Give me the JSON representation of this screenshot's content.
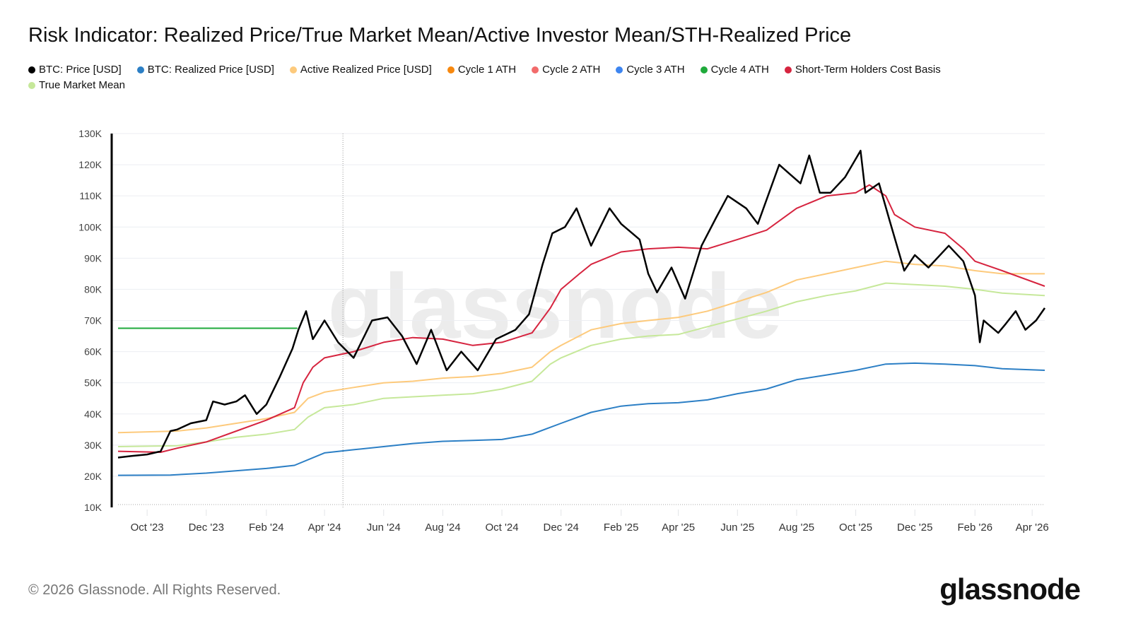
{
  "title": "Risk Indicator: Realized Price/True Market Mean/Active Investor Mean/STH-Realized Price",
  "footer": {
    "copyright": "© 2026 Glassnode. All Rights Reserved.",
    "logo": "glassnode"
  },
  "watermark": "glassnode",
  "legend": [
    {
      "label": "BTC: Price [USD]",
      "color": "#000000"
    },
    {
      "label": "BTC: Realized Price [USD]",
      "color": "#2c7fc5"
    },
    {
      "label": "Active Realized Price [USD]",
      "color": "#fdca7c"
    },
    {
      "label": "Cycle 1 ATH",
      "color": "#f7880f"
    },
    {
      "label": "Cycle 2 ATH",
      "color": "#f26b6b"
    },
    {
      "label": "Cycle 3 ATH",
      "color": "#3d85f0"
    },
    {
      "label": "Cycle 4 ATH",
      "color": "#1faa3b"
    },
    {
      "label": "Short-Term Holders Cost Basis",
      "color": "#d6243f"
    },
    {
      "label": "True Market Mean",
      "color": "#c6e89a"
    }
  ],
  "chart_data": {
    "type": "line",
    "title": "Risk Indicator: Realized Price/True Market Mean/Active Investor Mean/STH-Realized Price",
    "xlim": [
      "2023-09-01",
      "2026-04-14"
    ],
    "ylim": [
      10000,
      130000
    ],
    "y_ticks": [
      "10K",
      "20K",
      "30K",
      "40K",
      "50K",
      "60K",
      "70K",
      "80K",
      "90K",
      "100K",
      "110K",
      "120K",
      "130K"
    ],
    "x_ticks": [
      {
        "date": "2023-10-01",
        "label": "Oct '23"
      },
      {
        "date": "2023-12-01",
        "label": "Dec '23"
      },
      {
        "date": "2024-02-01",
        "label": "Feb '24"
      },
      {
        "date": "2024-04-01",
        "label": "Apr '24"
      },
      {
        "date": "2024-06-01",
        "label": "Jun '24"
      },
      {
        "date": "2024-08-01",
        "label": "Aug '24"
      },
      {
        "date": "2024-10-01",
        "label": "Oct '24"
      },
      {
        "date": "2024-12-01",
        "label": "Dec '24"
      },
      {
        "date": "2025-02-01",
        "label": "Feb '25"
      },
      {
        "date": "2025-04-01",
        "label": "Apr '25"
      },
      {
        "date": "2025-06-01",
        "label": "Jun '25"
      },
      {
        "date": "2025-08-01",
        "label": "Aug '25"
      },
      {
        "date": "2025-10-01",
        "label": "Oct '25"
      },
      {
        "date": "2025-12-01",
        "label": "Dec '25"
      },
      {
        "date": "2026-02-01",
        "label": "Feb '26"
      },
      {
        "date": "2026-04-01",
        "label": "Apr '26"
      }
    ],
    "grid": true,
    "legend_position": "top-left",
    "vertical_marker_date": "2024-04-20",
    "series": [
      {
        "name": "BTC: Price [USD]",
        "color": "#000000",
        "points": [
          [
            "2023-09-01",
            26000
          ],
          [
            "2023-09-15",
            26500
          ],
          [
            "2023-10-01",
            27000
          ],
          [
            "2023-10-15",
            28000
          ],
          [
            "2023-10-25",
            34500
          ],
          [
            "2023-11-01",
            35000
          ],
          [
            "2023-11-15",
            37000
          ],
          [
            "2023-12-01",
            38000
          ],
          [
            "2023-12-08",
            44000
          ],
          [
            "2023-12-20",
            43000
          ],
          [
            "2024-01-01",
            44000
          ],
          [
            "2024-01-10",
            46000
          ],
          [
            "2024-01-22",
            40000
          ],
          [
            "2024-02-01",
            43000
          ],
          [
            "2024-02-15",
            52000
          ],
          [
            "2024-02-28",
            61000
          ],
          [
            "2024-03-05",
            67000
          ],
          [
            "2024-03-13",
            73000
          ],
          [
            "2024-03-20",
            64000
          ],
          [
            "2024-04-01",
            70000
          ],
          [
            "2024-04-15",
            63000
          ],
          [
            "2024-05-01",
            58000
          ],
          [
            "2024-05-20",
            70000
          ],
          [
            "2024-06-05",
            71000
          ],
          [
            "2024-06-20",
            65000
          ],
          [
            "2024-07-05",
            56000
          ],
          [
            "2024-07-20",
            67000
          ],
          [
            "2024-08-05",
            54000
          ],
          [
            "2024-08-20",
            60000
          ],
          [
            "2024-09-06",
            54000
          ],
          [
            "2024-09-25",
            64000
          ],
          [
            "2024-10-15",
            67000
          ],
          [
            "2024-10-29",
            72000
          ],
          [
            "2024-11-12",
            88000
          ],
          [
            "2024-11-22",
            98000
          ],
          [
            "2024-12-05",
            100000
          ],
          [
            "2024-12-17",
            106000
          ],
          [
            "2025-01-01",
            94000
          ],
          [
            "2025-01-20",
            106000
          ],
          [
            "2025-02-01",
            101000
          ],
          [
            "2025-02-20",
            96000
          ],
          [
            "2025-03-01",
            85000
          ],
          [
            "2025-03-10",
            79000
          ],
          [
            "2025-03-25",
            87000
          ],
          [
            "2025-04-08",
            77000
          ],
          [
            "2025-04-25",
            94000
          ],
          [
            "2025-05-10",
            103000
          ],
          [
            "2025-05-22",
            110000
          ],
          [
            "2025-06-10",
            106000
          ],
          [
            "2025-06-22",
            101000
          ],
          [
            "2025-07-14",
            120000
          ],
          [
            "2025-07-25",
            117000
          ],
          [
            "2025-08-05",
            114000
          ],
          [
            "2025-08-14",
            123000
          ],
          [
            "2025-08-25",
            111000
          ],
          [
            "2025-09-05",
            111000
          ],
          [
            "2025-09-20",
            116000
          ],
          [
            "2025-10-06",
            124500
          ],
          [
            "2025-10-11",
            111000
          ],
          [
            "2025-10-25",
            114000
          ],
          [
            "2025-11-05",
            102000
          ],
          [
            "2025-11-20",
            86000
          ],
          [
            "2025-12-01",
            91000
          ],
          [
            "2025-12-15",
            87000
          ],
          [
            "2026-01-05",
            94000
          ],
          [
            "2026-01-20",
            89000
          ],
          [
            "2026-02-01",
            78000
          ],
          [
            "2026-02-06",
            63000
          ],
          [
            "2026-02-10",
            70000
          ],
          [
            "2026-02-25",
            66000
          ],
          [
            "2026-03-05",
            69000
          ],
          [
            "2026-03-15",
            73000
          ],
          [
            "2026-03-25",
            67000
          ],
          [
            "2026-04-05",
            70000
          ],
          [
            "2026-04-14",
            74000
          ]
        ]
      },
      {
        "name": "BTC: Realized Price [USD]",
        "color": "#2c7fc5",
        "points": [
          [
            "2023-09-01",
            20300
          ],
          [
            "2023-10-25",
            20400
          ],
          [
            "2023-12-01",
            21000
          ],
          [
            "2024-02-01",
            22500
          ],
          [
            "2024-03-01",
            23500
          ],
          [
            "2024-04-01",
            27500
          ],
          [
            "2024-05-01",
            28500
          ],
          [
            "2024-06-01",
            29500
          ],
          [
            "2024-07-01",
            30500
          ],
          [
            "2024-08-01",
            31200
          ],
          [
            "2024-09-01",
            31500
          ],
          [
            "2024-10-01",
            31800
          ],
          [
            "2024-11-01",
            33500
          ],
          [
            "2024-12-01",
            37000
          ],
          [
            "2025-01-01",
            40500
          ],
          [
            "2025-02-01",
            42500
          ],
          [
            "2025-03-01",
            43300
          ],
          [
            "2025-04-01",
            43600
          ],
          [
            "2025-05-01",
            44500
          ],
          [
            "2025-06-01",
            46500
          ],
          [
            "2025-07-01",
            48000
          ],
          [
            "2025-08-01",
            51000
          ],
          [
            "2025-09-01",
            52500
          ],
          [
            "2025-10-01",
            54000
          ],
          [
            "2025-11-01",
            56000
          ],
          [
            "2025-12-01",
            56300
          ],
          [
            "2026-01-01",
            56000
          ],
          [
            "2026-02-01",
            55500
          ],
          [
            "2026-03-01",
            54500
          ],
          [
            "2026-04-14",
            54000
          ]
        ]
      },
      {
        "name": "Active Realized Price [USD]",
        "color": "#fdca7c",
        "points": [
          [
            "2023-09-01",
            34000
          ],
          [
            "2023-11-01",
            34500
          ],
          [
            "2023-12-01",
            35500
          ],
          [
            "2024-01-01",
            37000
          ],
          [
            "2024-02-01",
            38500
          ],
          [
            "2024-03-01",
            40500
          ],
          [
            "2024-03-15",
            45000
          ],
          [
            "2024-04-01",
            47000
          ],
          [
            "2024-05-01",
            48500
          ],
          [
            "2024-06-01",
            50000
          ],
          [
            "2024-07-01",
            50500
          ],
          [
            "2024-08-01",
            51500
          ],
          [
            "2024-09-01",
            52000
          ],
          [
            "2024-10-01",
            53000
          ],
          [
            "2024-11-01",
            55000
          ],
          [
            "2024-11-20",
            60000
          ],
          [
            "2024-12-01",
            62000
          ],
          [
            "2025-01-01",
            67000
          ],
          [
            "2025-02-01",
            69000
          ],
          [
            "2025-03-01",
            70000
          ],
          [
            "2025-04-01",
            71000
          ],
          [
            "2025-05-01",
            73000
          ],
          [
            "2025-06-01",
            76000
          ],
          [
            "2025-07-01",
            79000
          ],
          [
            "2025-08-01",
            83000
          ],
          [
            "2025-09-01",
            85000
          ],
          [
            "2025-10-01",
            87000
          ],
          [
            "2025-11-01",
            89000
          ],
          [
            "2025-12-01",
            88000
          ],
          [
            "2026-01-01",
            87500
          ],
          [
            "2026-02-01",
            86000
          ],
          [
            "2026-03-01",
            85000
          ],
          [
            "2026-04-14",
            85000
          ]
        ]
      },
      {
        "name": "Cycle 4 ATH",
        "color": "#1faa3b",
        "points": [
          [
            "2023-09-01",
            67500
          ],
          [
            "2024-03-04",
            67500
          ]
        ]
      },
      {
        "name": "Short-Term Holders Cost Basis",
        "color": "#d6243f",
        "points": [
          [
            "2023-09-01",
            28000
          ],
          [
            "2023-10-15",
            27700
          ],
          [
            "2023-11-01",
            29000
          ],
          [
            "2023-12-01",
            31000
          ],
          [
            "2024-01-01",
            34500
          ],
          [
            "2024-02-01",
            38000
          ],
          [
            "2024-03-01",
            42000
          ],
          [
            "2024-03-10",
            50000
          ],
          [
            "2024-03-20",
            55000
          ],
          [
            "2024-04-01",
            58000
          ],
          [
            "2024-05-01",
            60000
          ],
          [
            "2024-06-01",
            63000
          ],
          [
            "2024-07-01",
            64500
          ],
          [
            "2024-08-01",
            64000
          ],
          [
            "2024-09-01",
            62000
          ],
          [
            "2024-10-01",
            63000
          ],
          [
            "2024-11-01",
            66000
          ],
          [
            "2024-11-20",
            74000
          ],
          [
            "2024-12-01",
            80000
          ],
          [
            "2024-12-20",
            85000
          ],
          [
            "2025-01-01",
            88000
          ],
          [
            "2025-02-01",
            92000
          ],
          [
            "2025-03-01",
            93000
          ],
          [
            "2025-04-01",
            93500
          ],
          [
            "2025-05-01",
            93000
          ],
          [
            "2025-06-01",
            96000
          ],
          [
            "2025-07-01",
            99000
          ],
          [
            "2025-08-01",
            106000
          ],
          [
            "2025-09-01",
            110000
          ],
          [
            "2025-10-01",
            111000
          ],
          [
            "2025-10-15",
            113500
          ],
          [
            "2025-11-01",
            110000
          ],
          [
            "2025-11-10",
            104000
          ],
          [
            "2025-12-01",
            100000
          ],
          [
            "2026-01-01",
            98000
          ],
          [
            "2026-01-20",
            93000
          ],
          [
            "2026-02-01",
            89000
          ],
          [
            "2026-03-01",
            86000
          ],
          [
            "2026-04-14",
            81000
          ]
        ]
      },
      {
        "name": "True Market Mean",
        "color": "#c6e89a",
        "points": [
          [
            "2023-09-01",
            29500
          ],
          [
            "2023-11-01",
            29800
          ],
          [
            "2023-12-01",
            31000
          ],
          [
            "2024-01-01",
            32500
          ],
          [
            "2024-02-01",
            33500
          ],
          [
            "2024-03-01",
            35000
          ],
          [
            "2024-03-15",
            39000
          ],
          [
            "2024-04-01",
            42000
          ],
          [
            "2024-05-01",
            43000
          ],
          [
            "2024-06-01",
            45000
          ],
          [
            "2024-07-01",
            45500
          ],
          [
            "2024-08-01",
            46000
          ],
          [
            "2024-09-01",
            46500
          ],
          [
            "2024-10-01",
            48000
          ],
          [
            "2024-11-01",
            50500
          ],
          [
            "2024-11-20",
            56000
          ],
          [
            "2024-12-01",
            58000
          ],
          [
            "2025-01-01",
            62000
          ],
          [
            "2025-02-01",
            64000
          ],
          [
            "2025-03-01",
            65000
          ],
          [
            "2025-04-01",
            65500
          ],
          [
            "2025-05-01",
            68000
          ],
          [
            "2025-06-01",
            70500
          ],
          [
            "2025-07-01",
            73000
          ],
          [
            "2025-08-01",
            76000
          ],
          [
            "2025-09-01",
            78000
          ],
          [
            "2025-10-01",
            79500
          ],
          [
            "2025-11-01",
            82000
          ],
          [
            "2025-12-01",
            81500
          ],
          [
            "2026-01-01",
            81000
          ],
          [
            "2026-02-01",
            80000
          ],
          [
            "2026-03-01",
            78800
          ],
          [
            "2026-04-14",
            78000
          ]
        ]
      }
    ]
  }
}
